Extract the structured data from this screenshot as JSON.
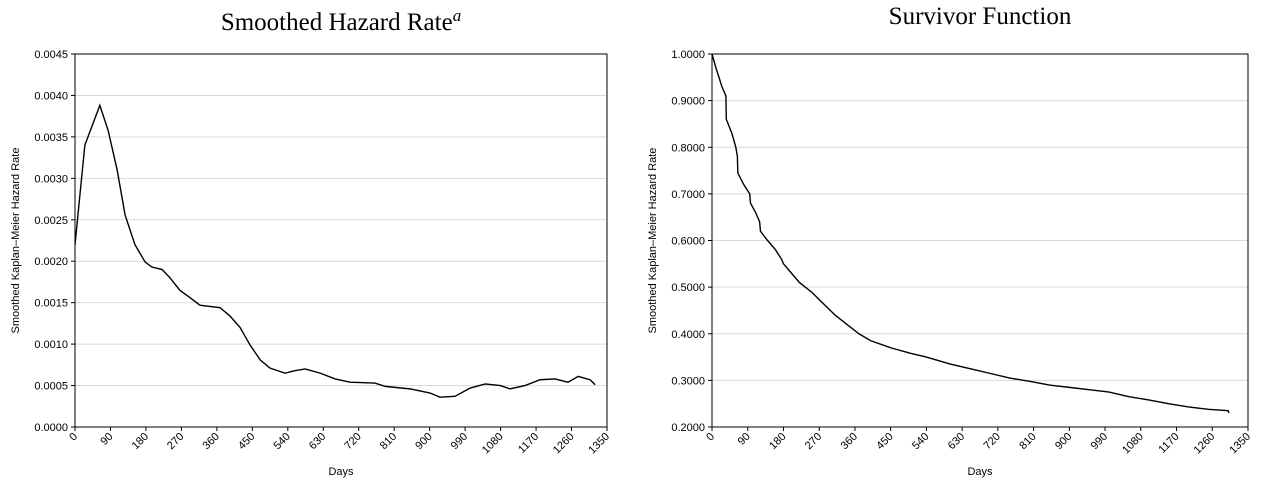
{
  "chart_data": [
    {
      "type": "line",
      "title": "Smoothed Hazard Rate",
      "title_superscript": "a",
      "x_label": "Days",
      "y_label": "Smoothed Kaplan–Meier Hazard Rate",
      "xlim": [
        0,
        1350
      ],
      "xticks": [
        0,
        90,
        180,
        270,
        360,
        450,
        540,
        630,
        720,
        810,
        900,
        990,
        1080,
        1170,
        1260,
        1350
      ],
      "ylim": [
        0,
        0.0045
      ],
      "yticks": [
        {
          "value": 0,
          "label": "0.0000"
        },
        {
          "value": 0.0005,
          "label": "0.0005"
        },
        {
          "value": 0.001,
          "label": "0.0010"
        },
        {
          "value": 0.0015,
          "label": "0.0015"
        },
        {
          "value": 0.002,
          "label": "0.0020"
        },
        {
          "value": 0.0025,
          "label": "0.0025"
        },
        {
          "value": 0.003,
          "label": "0.0030"
        },
        {
          "value": 0.0035,
          "label": "0.0035"
        },
        {
          "value": 0.004,
          "label": "0.0040"
        },
        {
          "value": 0.0045,
          "label": "0.0045"
        }
      ],
      "grid": true,
      "color": "#000000",
      "x": [
        0,
        25,
        63,
        84,
        107,
        127,
        152,
        178,
        195,
        221,
        241,
        266,
        292,
        317,
        368,
        393,
        419,
        444,
        470,
        495,
        533,
        558,
        584,
        622,
        660,
        698,
        761,
        787,
        850,
        901,
        926,
        964,
        1003,
        1041,
        1079,
        1104,
        1142,
        1180,
        1218,
        1251,
        1277,
        1307,
        1320
      ],
      "values": [
        0.0022,
        0.0034,
        0.00388,
        0.00358,
        0.0031,
        0.00256,
        0.0022,
        0.00199,
        0.00193,
        0.0019,
        0.0018,
        0.00165,
        0.00156,
        0.00147,
        0.00144,
        0.00134,
        0.0012,
        0.00099,
        0.00081,
        0.00071,
        0.00065,
        0.00068,
        0.0007,
        0.00065,
        0.00058,
        0.00054,
        0.00053,
        0.00049,
        0.00046,
        0.00041,
        0.00036,
        0.00037,
        0.00047,
        0.00052,
        0.0005,
        0.00046,
        0.0005,
        0.00057,
        0.00058,
        0.00054,
        0.00061,
        0.00057,
        0.00051
      ]
    },
    {
      "type": "line",
      "title": "Survivor Function",
      "x_label": "Days",
      "y_label": "Smoothed Kaplan–Meier Hazard Rate",
      "xlim": [
        0,
        1350
      ],
      "xticks": [
        0,
        90,
        180,
        270,
        360,
        450,
        540,
        630,
        720,
        810,
        900,
        990,
        1080,
        1170,
        1260,
        1350
      ],
      "ylim": [
        0.2,
        1.0
      ],
      "yticks": [
        {
          "value": 0.2,
          "label": "0.2000"
        },
        {
          "value": 0.3,
          "label": "0.3000"
        },
        {
          "value": 0.4,
          "label": "0.4000"
        },
        {
          "value": 0.5,
          "label": "0.5000"
        },
        {
          "value": 0.6,
          "label": "0.6000"
        },
        {
          "value": 0.7,
          "label": "0.7000"
        },
        {
          "value": 0.8,
          "label": "0.8000"
        },
        {
          "value": 0.9,
          "label": "0.9000"
        },
        {
          "value": 1.0,
          "label": "1.0000"
        }
      ],
      "grid": true,
      "color": "#000000",
      "x": [
        0,
        10,
        25,
        35,
        36,
        50,
        60,
        64,
        65,
        80,
        95,
        97,
        110,
        120,
        122,
        140,
        160,
        175,
        180,
        200,
        220,
        250,
        280,
        310,
        340,
        370,
        400,
        450,
        500,
        540,
        600,
        650,
        700,
        750,
        800,
        850,
        900,
        950,
        1000,
        1050,
        1100,
        1150,
        1200,
        1250,
        1300,
        1302
      ],
      "values": [
        1.0,
        0.97,
        0.93,
        0.91,
        0.86,
        0.83,
        0.8,
        0.78,
        0.745,
        0.72,
        0.7,
        0.68,
        0.66,
        0.64,
        0.62,
        0.6,
        0.58,
        0.56,
        0.55,
        0.53,
        0.51,
        0.49,
        0.465,
        0.44,
        0.42,
        0.4,
        0.385,
        0.37,
        0.358,
        0.35,
        0.335,
        0.325,
        0.315,
        0.305,
        0.298,
        0.29,
        0.285,
        0.28,
        0.275,
        0.265,
        0.258,
        0.25,
        0.243,
        0.238,
        0.235,
        0.23
      ]
    }
  ]
}
